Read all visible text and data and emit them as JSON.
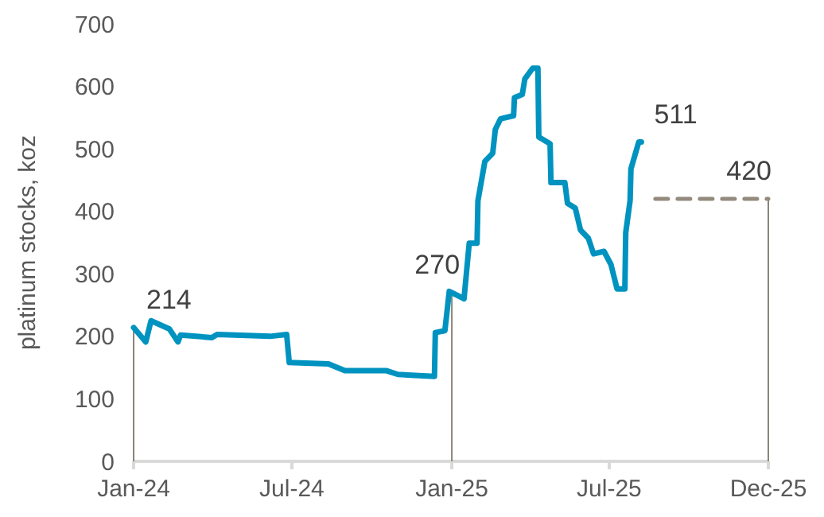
{
  "chart_data": {
    "type": "line",
    "ylabel": "platinum stocks, koz",
    "x": [
      "2024-01-01",
      "2024-01-15",
      "2024-01-21",
      "2024-02-11",
      "2024-02-21",
      "2024-02-24",
      "2024-03-31",
      "2024-04-06",
      "2024-06-06",
      "2024-06-25",
      "2024-06-28",
      "2024-08-12",
      "2024-08-31",
      "2024-10-18",
      "2024-10-31",
      "2024-12-12",
      "2024-12-13",
      "2024-12-24",
      "2024-12-29",
      "2025-01-01",
      "2025-01-15",
      "2025-01-21",
      "2025-01-30",
      "2025-01-31",
      "2025-02-08",
      "2025-02-17",
      "2025-02-20",
      "2025-02-26",
      "2025-03-13",
      "2025-03-14",
      "2025-03-23",
      "2025-03-26",
      "2025-04-04",
      "2025-04-10",
      "2025-04-11",
      "2025-04-24",
      "2025-04-25",
      "2025-05-11",
      "2025-05-14",
      "2025-05-23",
      "2025-05-29",
      "2025-06-07",
      "2025-06-13",
      "2025-06-25",
      "2025-07-03",
      "2025-07-10",
      "2025-07-19",
      "2025-07-20",
      "2025-07-25",
      "2025-07-26",
      "2025-08-04",
      "2025-08-07"
    ],
    "series": [
      {
        "color": "#0093c0",
        "line_style": "solid",
        "values": [
          214,
          191,
          225,
          212,
          191,
          202,
          198,
          203,
          200,
          203,
          158,
          156,
          145,
          145,
          139,
          136,
          206,
          209,
          272,
          270,
          260,
          349,
          349,
          417,
          480,
          493,
          531,
          548,
          553,
          582,
          587,
          612,
          629,
          629,
          519,
          508,
          446,
          446,
          413,
          405,
          370,
          357,
          332,
          336,
          315,
          276,
          276,
          366,
          417,
          468,
          511,
          511
        ]
      },
      {
        "color": "#948a7e",
        "line_style": "dashed",
        "x": [
          "2025-08-23",
          "2025-12-31"
        ],
        "values": [
          420,
          420
        ]
      }
    ],
    "xlim": [
      "2024-01-01",
      "2025-12-31"
    ],
    "xticks": [
      {
        "value": "2024-01-01",
        "label": "Jan-24"
      },
      {
        "value": "2024-07-01",
        "label": "Jul-24"
      },
      {
        "value": "2025-01-01",
        "label": "Jan-25"
      },
      {
        "value": "2025-07-01",
        "label": "Jul-25"
      },
      {
        "value": "2025-12-31",
        "label": "Dec-25"
      }
    ],
    "ylim": [
      0,
      700
    ],
    "yticks": [
      0,
      100,
      200,
      300,
      400,
      500,
      600,
      700
    ],
    "grid": false,
    "marker": "none",
    "annotations": [
      {
        "text": "214",
        "x": "2024-01-01",
        "y": 214
      },
      {
        "text": "270",
        "x": "2025-01-01",
        "y": 270
      },
      {
        "text": "511",
        "x": "2025-08-07",
        "y": 511
      },
      {
        "text": "420",
        "x": "2025-12-31",
        "y": 420
      }
    ]
  }
}
